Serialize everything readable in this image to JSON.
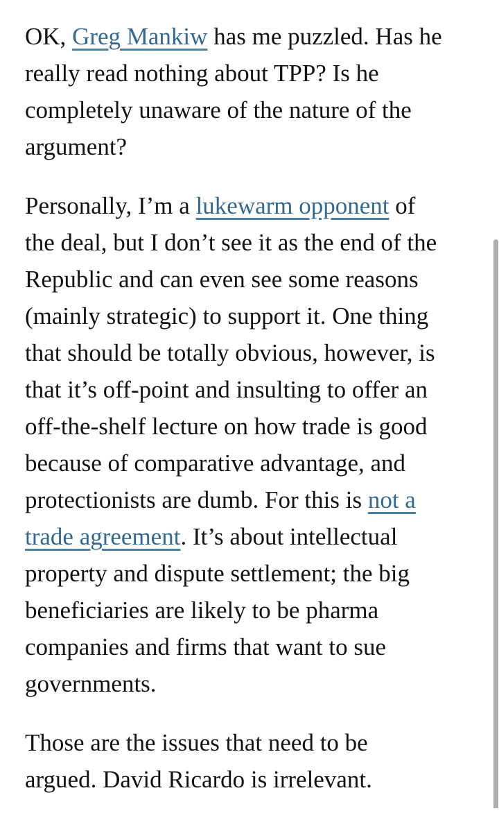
{
  "page": {
    "background": "#ffffff",
    "text_color": "#131313",
    "link_color": "#326891",
    "scrollbar_color": "#aeaeae"
  },
  "article": {
    "paragraphs": [
      {
        "lines": [
          [
            {
              "t": "OK, "
            },
            {
              "t": "Greg Mankiw",
              "link": "greg-mankiw"
            },
            {
              "t": " has me puzzled. Has he"
            }
          ],
          [
            {
              "t": "really read nothing about TPP? Is he"
            }
          ],
          [
            {
              "t": "completely unaware of the nature of the"
            }
          ],
          [
            {
              "t": "argument?"
            }
          ]
        ]
      },
      {
        "lines": [
          [
            {
              "t": "Personally, I’m a "
            },
            {
              "t": "lukewarm opponent",
              "link": "lukewarm-opponent"
            },
            {
              "t": " of"
            }
          ],
          [
            {
              "t": "the deal, but I don’t see it as the end of the"
            }
          ],
          [
            {
              "t": "Republic and can even see some reasons"
            }
          ],
          [
            {
              "t": "(mainly strategic) to support it. One thing"
            }
          ],
          [
            {
              "t": "that should be totally obvious, however, is"
            }
          ],
          [
            {
              "t": "that it’s off-point and insulting to offer an"
            }
          ],
          [
            {
              "t": "off-the-shelf lecture on how trade is good"
            }
          ],
          [
            {
              "t": "because of comparative advantage, and"
            }
          ],
          [
            {
              "t": "protectionists are dumb. For this is "
            },
            {
              "t": "not a",
              "link": "not-a-trade-agreement"
            }
          ],
          [
            {
              "t": "trade agreement",
              "link": "not-a-trade-agreement"
            },
            {
              "t": ". It’s about intellectual"
            }
          ],
          [
            {
              "t": "property and dispute settlement; the big"
            }
          ],
          [
            {
              "t": "beneficiaries are likely to be pharma"
            }
          ],
          [
            {
              "t": "companies and firms that want to sue"
            }
          ],
          [
            {
              "t": "governments."
            }
          ]
        ]
      },
      {
        "lines": [
          [
            {
              "t": "Those are the issues that need to be"
            }
          ],
          [
            {
              "t": "argued. David Ricardo is irrelevant."
            }
          ]
        ]
      }
    ]
  },
  "scrollbar": {
    "visible": true
  }
}
